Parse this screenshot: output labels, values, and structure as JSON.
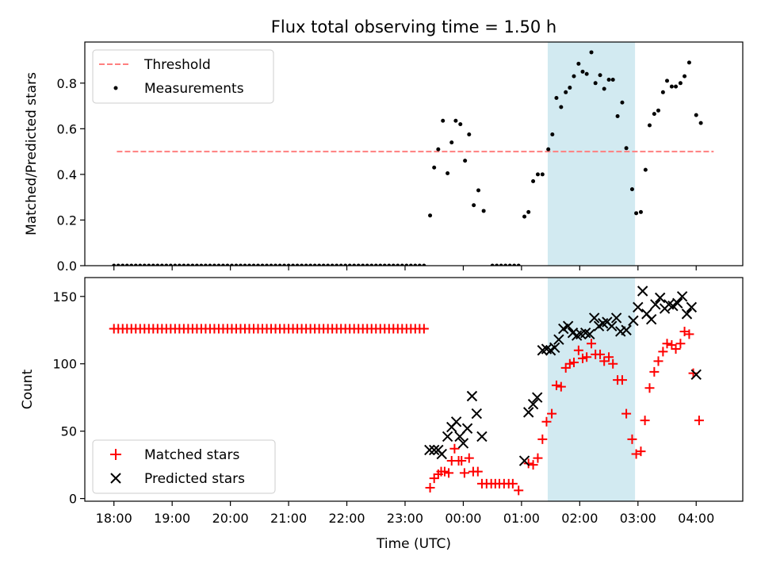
{
  "chart_data": [
    {
      "type": "scatter",
      "title": "Flux total observing time = 1.50 h",
      "xlabel": "",
      "ylabel": "Matched/Predicted stars",
      "x_units": "hours since 18:00 UTC",
      "xlim": [
        -0.5,
        10.8
      ],
      "ylim": [
        0,
        0.98
      ],
      "yticks": [
        0.0,
        0.2,
        0.4,
        0.6,
        0.8
      ],
      "yticklabels": [
        "0.0",
        "0.2",
        "0.4",
        "0.6",
        "0.8"
      ],
      "highlight_span": {
        "from": 7.45,
        "to": 8.95,
        "color": "#add8e6"
      },
      "legend": {
        "position": "top-left",
        "entries": [
          "Threshold",
          "Measurements"
        ]
      },
      "threshold": {
        "name": "Threshold",
        "x": [
          0.05,
          10.3
        ],
        "y": 0.5,
        "color": "#ff7f7f"
      },
      "series": [
        {
          "name": "Measurements",
          "color": "#000000",
          "points": [
            [
              5.43,
              0.22
            ],
            [
              5.5,
              0.43
            ],
            [
              5.57,
              0.51
            ],
            [
              5.65,
              0.635
            ],
            [
              5.73,
              0.405
            ],
            [
              5.8,
              0.54
            ],
            [
              5.87,
              0.635
            ],
            [
              5.95,
              0.62
            ],
            [
              6.03,
              0.46
            ],
            [
              6.1,
              0.575
            ],
            [
              6.18,
              0.265
            ],
            [
              6.26,
              0.33
            ],
            [
              6.35,
              0.24
            ],
            [
              7.05,
              0.215
            ],
            [
              7.12,
              0.235
            ],
            [
              7.2,
              0.37
            ],
            [
              7.28,
              0.4
            ],
            [
              7.36,
              0.4
            ],
            [
              7.46,
              0.51
            ],
            [
              7.53,
              0.575
            ],
            [
              7.6,
              0.735
            ],
            [
              7.68,
              0.695
            ],
            [
              7.76,
              0.76
            ],
            [
              7.83,
              0.78
            ],
            [
              7.9,
              0.83
            ],
            [
              7.98,
              0.885
            ],
            [
              8.05,
              0.85
            ],
            [
              8.12,
              0.84
            ],
            [
              8.2,
              0.935
            ],
            [
              8.27,
              0.8
            ],
            [
              8.35,
              0.835
            ],
            [
              8.42,
              0.775
            ],
            [
              8.5,
              0.815
            ],
            [
              8.57,
              0.815
            ],
            [
              8.65,
              0.655
            ],
            [
              8.73,
              0.715
            ],
            [
              8.8,
              0.515
            ],
            [
              8.9,
              0.335
            ],
            [
              8.97,
              0.23
            ],
            [
              9.05,
              0.235
            ],
            [
              9.13,
              0.42
            ],
            [
              9.2,
              0.615
            ],
            [
              9.28,
              0.665
            ],
            [
              9.35,
              0.68
            ],
            [
              9.43,
              0.76
            ],
            [
              9.5,
              0.81
            ],
            [
              9.58,
              0.785
            ],
            [
              9.65,
              0.785
            ],
            [
              9.73,
              0.8
            ],
            [
              9.8,
              0.83
            ],
            [
              9.88,
              0.89
            ],
            [
              10.0,
              0.66
            ],
            [
              10.08,
              0.625
            ]
          ],
          "zero_range": {
            "from": 0.0,
            "to": 5.35,
            "step": 0.075
          },
          "zero_range_2": {
            "from": 6.5,
            "to": 6.97,
            "step": 0.075
          }
        }
      ]
    },
    {
      "type": "scatter",
      "xlabel": "Time (UTC)",
      "ylabel": "Count",
      "x_units": "hours since 18:00 UTC",
      "xlim": [
        -0.5,
        10.8
      ],
      "ylim": [
        -2,
        164
      ],
      "xticks": [
        0,
        1,
        2,
        3,
        4,
        5,
        6,
        7,
        8,
        9,
        10
      ],
      "xticklabels": [
        "18:00",
        "19:00",
        "20:00",
        "21:00",
        "22:00",
        "23:00",
        "00:00",
        "01:00",
        "02:00",
        "03:00",
        "04:00"
      ],
      "yticks": [
        0,
        50,
        100,
        150
      ],
      "yticklabels": [
        "0",
        "50",
        "100",
        "150"
      ],
      "highlight_span": {
        "from": 7.45,
        "to": 8.95,
        "color": "#add8e6"
      },
      "legend": {
        "position": "bottom-left",
        "entries": [
          "Matched stars",
          "Predicted stars"
        ]
      },
      "series": [
        {
          "name": "Matched stars",
          "color": "#ff0000",
          "marker": "+",
          "constant_range": {
            "from": 0.0,
            "to": 5.35,
            "step": 0.075,
            "y": 126
          },
          "points": [
            [
              5.43,
              8
            ],
            [
              5.5,
              15
            ],
            [
              5.57,
              18
            ],
            [
              5.62,
              20
            ],
            [
              5.68,
              20
            ],
            [
              5.75,
              19
            ],
            [
              5.8,
              28
            ],
            [
              5.85,
              37
            ],
            [
              5.92,
              28
            ],
            [
              5.97,
              28
            ],
            [
              6.02,
              19
            ],
            [
              6.1,
              30
            ],
            [
              6.17,
              20
            ],
            [
              6.25,
              20
            ],
            [
              6.32,
              11
            ],
            [
              6.4,
              11
            ],
            [
              6.48,
              11
            ],
            [
              6.55,
              11
            ],
            [
              6.62,
              11
            ],
            [
              6.7,
              11
            ],
            [
              6.78,
              11
            ],
            [
              6.85,
              11
            ],
            [
              6.95,
              6
            ],
            [
              7.12,
              26
            ],
            [
              7.2,
              25
            ],
            [
              7.28,
              30
            ],
            [
              7.36,
              44
            ],
            [
              7.43,
              57
            ],
            [
              7.52,
              63
            ],
            [
              7.6,
              84
            ],
            [
              7.68,
              83
            ],
            [
              7.76,
              97
            ],
            [
              7.83,
              100
            ],
            [
              7.9,
              101
            ],
            [
              7.98,
              110
            ],
            [
              8.05,
              104
            ],
            [
              8.12,
              105
            ],
            [
              8.2,
              115
            ],
            [
              8.27,
              107
            ],
            [
              8.35,
              107
            ],
            [
              8.42,
              102
            ],
            [
              8.5,
              105
            ],
            [
              8.57,
              100
            ],
            [
              8.65,
              88
            ],
            [
              8.73,
              88
            ],
            [
              8.8,
              63
            ],
            [
              8.9,
              44
            ],
            [
              8.97,
              33
            ],
            [
              9.05,
              35
            ],
            [
              9.12,
              58
            ],
            [
              9.2,
              82
            ],
            [
              9.28,
              94
            ],
            [
              9.35,
              102
            ],
            [
              9.43,
              109
            ],
            [
              9.5,
              115
            ],
            [
              9.58,
              114
            ],
            [
              9.65,
              111
            ],
            [
              9.73,
              115
            ],
            [
              9.8,
              124
            ],
            [
              9.88,
              122
            ],
            [
              9.95,
              93
            ],
            [
              10.05,
              58
            ]
          ]
        },
        {
          "name": "Predicted stars",
          "color": "#000000",
          "marker": "x",
          "points": [
            [
              5.42,
              36
            ],
            [
              5.5,
              36
            ],
            [
              5.57,
              36
            ],
            [
              5.63,
              33
            ],
            [
              5.73,
              46
            ],
            [
              5.8,
              53
            ],
            [
              5.88,
              57
            ],
            [
              5.94,
              46
            ],
            [
              6.0,
              41
            ],
            [
              6.07,
              52
            ],
            [
              6.15,
              76
            ],
            [
              6.23,
              63
            ],
            [
              6.32,
              46
            ],
            [
              7.05,
              28
            ],
            [
              7.12,
              64
            ],
            [
              7.2,
              70
            ],
            [
              7.27,
              75
            ],
            [
              7.36,
              110
            ],
            [
              7.43,
              111
            ],
            [
              7.5,
              110
            ],
            [
              7.57,
              112
            ],
            [
              7.64,
              118
            ],
            [
              7.72,
              126
            ],
            [
              7.8,
              128
            ],
            [
              7.88,
              123
            ],
            [
              7.95,
              121
            ],
            [
              8.02,
              122
            ],
            [
              8.1,
              123
            ],
            [
              8.17,
              122
            ],
            [
              8.25,
              134
            ],
            [
              8.33,
              128
            ],
            [
              8.4,
              130
            ],
            [
              8.47,
              131
            ],
            [
              8.55,
              128
            ],
            [
              8.63,
              134
            ],
            [
              8.7,
              124
            ],
            [
              8.8,
              125
            ],
            [
              8.92,
              132
            ],
            [
              9.0,
              142
            ],
            [
              9.08,
              154
            ],
            [
              9.15,
              137
            ],
            [
              9.23,
              133
            ],
            [
              9.3,
              144
            ],
            [
              9.38,
              149
            ],
            [
              9.46,
              141
            ],
            [
              9.53,
              144
            ],
            [
              9.6,
              143
            ],
            [
              9.68,
              145
            ],
            [
              9.76,
              150
            ],
            [
              9.84,
              137
            ],
            [
              9.92,
              142
            ],
            [
              10.0,
              92
            ]
          ]
        }
      ]
    }
  ]
}
